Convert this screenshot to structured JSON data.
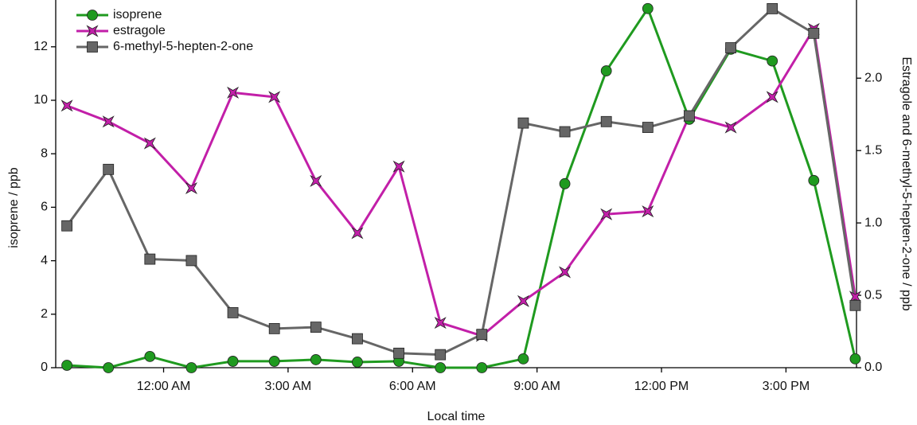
{
  "chart_data": {
    "type": "line",
    "x_label": "Local time",
    "y_label": "isoprene / ppb",
    "y2_label": "Estragole and 6-methyl-5-hepten-2-one / ppb",
    "legend": "upper left",
    "x": [
      -2.33,
      -1.33,
      -0.33,
      0.67,
      1.67,
      2.67,
      3.67,
      4.67,
      5.67,
      6.67,
      7.67,
      8.67,
      9.67,
      10.67,
      11.67,
      12.67,
      13.67,
      14.67,
      15.67,
      16.67
    ],
    "xlim": [
      -2.6,
      16.7
    ],
    "xticks": [
      {
        "value": 0,
        "label": "12:00 AM"
      },
      {
        "value": 3,
        "label": "3:00 AM"
      },
      {
        "value": 6,
        "label": "6:00 AM"
      },
      {
        "value": 9,
        "label": "9:00 AM"
      },
      {
        "value": 12,
        "label": "12:00 PM"
      },
      {
        "value": 15,
        "label": "3:00 PM"
      }
    ],
    "ylim": [
      0,
      13.75
    ],
    "yticks": [
      0,
      2,
      4,
      6,
      8,
      10,
      12
    ],
    "y2lim": [
      0,
      2.54
    ],
    "y2ticks": [
      {
        "value": 0,
        "label": "0.0"
      },
      {
        "value": 0.5,
        "label": "0.5"
      },
      {
        "value": 1,
        "label": "1.0"
      },
      {
        "value": 1.5,
        "label": "1.5"
      },
      {
        "value": 2,
        "label": "2.0"
      }
    ],
    "series": [
      {
        "name": "isoprene",
        "color": "#1f9a1f",
        "marker": "circle",
        "axis": "y",
        "values": [
          0.09,
          0,
          0.42,
          0,
          0.24,
          0.24,
          0.3,
          0.21,
          0.24,
          0,
          0,
          0.33,
          6.88,
          11.1,
          13.43,
          9.29,
          11.91,
          11.47,
          7.0,
          0.33
        ]
      },
      {
        "name": "estragole",
        "color": "#c21fa8",
        "marker": "star",
        "axis": "y2",
        "values": [
          1.81,
          1.7,
          1.55,
          1.24,
          1.9,
          1.87,
          1.29,
          0.93,
          1.39,
          0.31,
          0.22,
          0.46,
          0.66,
          1.06,
          1.08,
          1.74,
          1.66,
          1.87,
          2.34,
          0.49
        ]
      },
      {
        "name": "6-methyl-5-hepten-2-one",
        "color": "#666666",
        "marker": "square",
        "axis": "y2",
        "values": [
          0.98,
          1.37,
          0.75,
          0.74,
          0.38,
          0.27,
          0.28,
          0.2,
          0.1,
          0.09,
          0.23,
          1.69,
          1.63,
          1.7,
          1.66,
          1.74,
          2.21,
          2.48,
          2.31,
          0.43
        ]
      }
    ]
  }
}
